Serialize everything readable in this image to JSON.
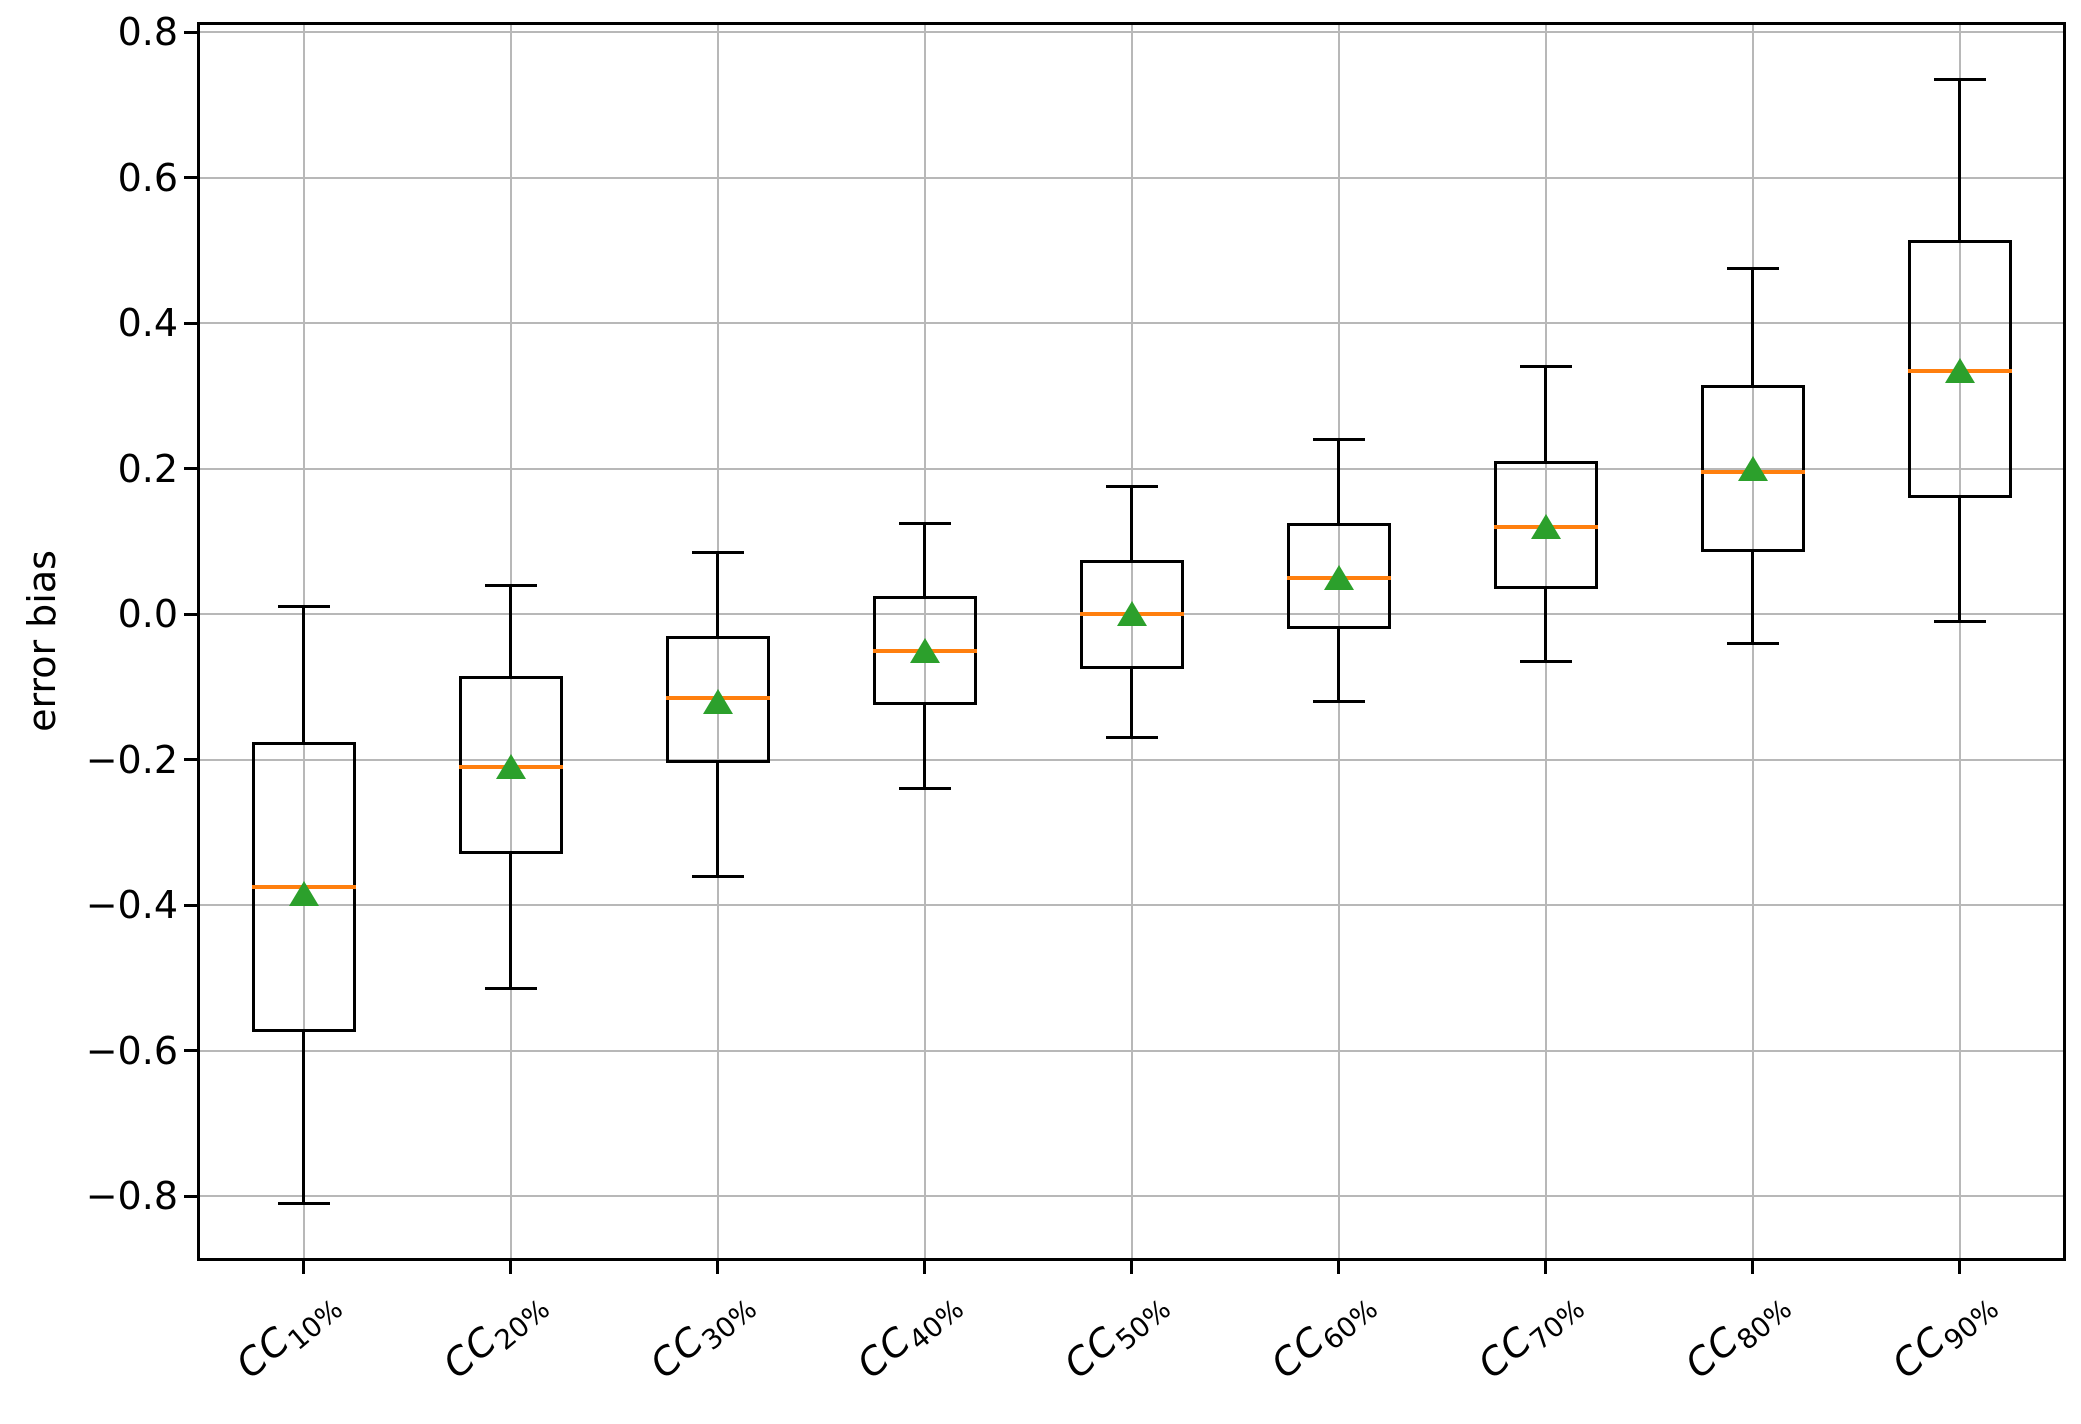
{
  "chart_data": {
    "type": "box",
    "title": "",
    "xlabel": "",
    "ylabel": "error bias",
    "grid": true,
    "legend": false,
    "ylim": [
      -0.885,
      0.81
    ],
    "xtick_rotation_deg": 40,
    "yticks": [
      {
        "value": 0.8,
        "label": "0.8"
      },
      {
        "value": 0.6,
        "label": "0.6"
      },
      {
        "value": 0.4,
        "label": "0.4"
      },
      {
        "value": 0.2,
        "label": "0.2"
      },
      {
        "value": 0.0,
        "label": "0.0"
      },
      {
        "value": -0.2,
        "label": "−0.2"
      },
      {
        "value": -0.4,
        "label": "−0.4"
      },
      {
        "value": -0.6,
        "label": "−0.6"
      },
      {
        "value": -0.8,
        "label": "−0.8"
      }
    ],
    "categories": [
      {
        "base": "CC",
        "sub": "10%"
      },
      {
        "base": "CC",
        "sub": "20%"
      },
      {
        "base": "CC",
        "sub": "30%"
      },
      {
        "base": "CC",
        "sub": "40%"
      },
      {
        "base": "CC",
        "sub": "50%"
      },
      {
        "base": "CC",
        "sub": "60%"
      },
      {
        "base": "CC",
        "sub": "70%"
      },
      {
        "base": "CC",
        "sub": "80%"
      },
      {
        "base": "CC",
        "sub": "90%"
      }
    ],
    "series": [
      {
        "category": "CC 10%",
        "whisker_low": -0.81,
        "q1": -0.575,
        "median": -0.375,
        "mean": -0.385,
        "q3": -0.175,
        "whisker_high": 0.01
      },
      {
        "category": "CC 20%",
        "whisker_low": -0.515,
        "q1": -0.33,
        "median": -0.21,
        "mean": -0.21,
        "q3": -0.085,
        "whisker_high": 0.04
      },
      {
        "category": "CC 30%",
        "whisker_low": -0.36,
        "q1": -0.205,
        "median": -0.115,
        "mean": -0.12,
        "q3": -0.03,
        "whisker_high": 0.085
      },
      {
        "category": "CC 40%",
        "whisker_low": -0.24,
        "q1": -0.125,
        "median": -0.05,
        "mean": -0.05,
        "q3": 0.025,
        "whisker_high": 0.125
      },
      {
        "category": "CC 50%",
        "whisker_low": -0.17,
        "q1": -0.075,
        "median": 0.0,
        "mean": 0.0,
        "q3": 0.075,
        "whisker_high": 0.175
      },
      {
        "category": "CC 60%",
        "whisker_low": -0.12,
        "q1": -0.02,
        "median": 0.05,
        "mean": 0.05,
        "q3": 0.125,
        "whisker_high": 0.24
      },
      {
        "category": "CC 70%",
        "whisker_low": -0.065,
        "q1": 0.035,
        "median": 0.12,
        "mean": 0.12,
        "q3": 0.21,
        "whisker_high": 0.34
      },
      {
        "category": "CC 80%",
        "whisker_low": -0.04,
        "q1": 0.085,
        "median": 0.195,
        "mean": 0.2,
        "q3": 0.315,
        "whisker_high": 0.475
      },
      {
        "category": "CC 90%",
        "whisker_low": -0.01,
        "q1": 0.16,
        "median": 0.335,
        "mean": 0.335,
        "q3": 0.515,
        "whisker_high": 0.735
      }
    ],
    "colors": {
      "box_line": "#000000",
      "median": "#ff7f0e",
      "mean_marker": "#2ca02c",
      "grid_line": "#b8b8b8",
      "background": "#ffffff"
    }
  }
}
